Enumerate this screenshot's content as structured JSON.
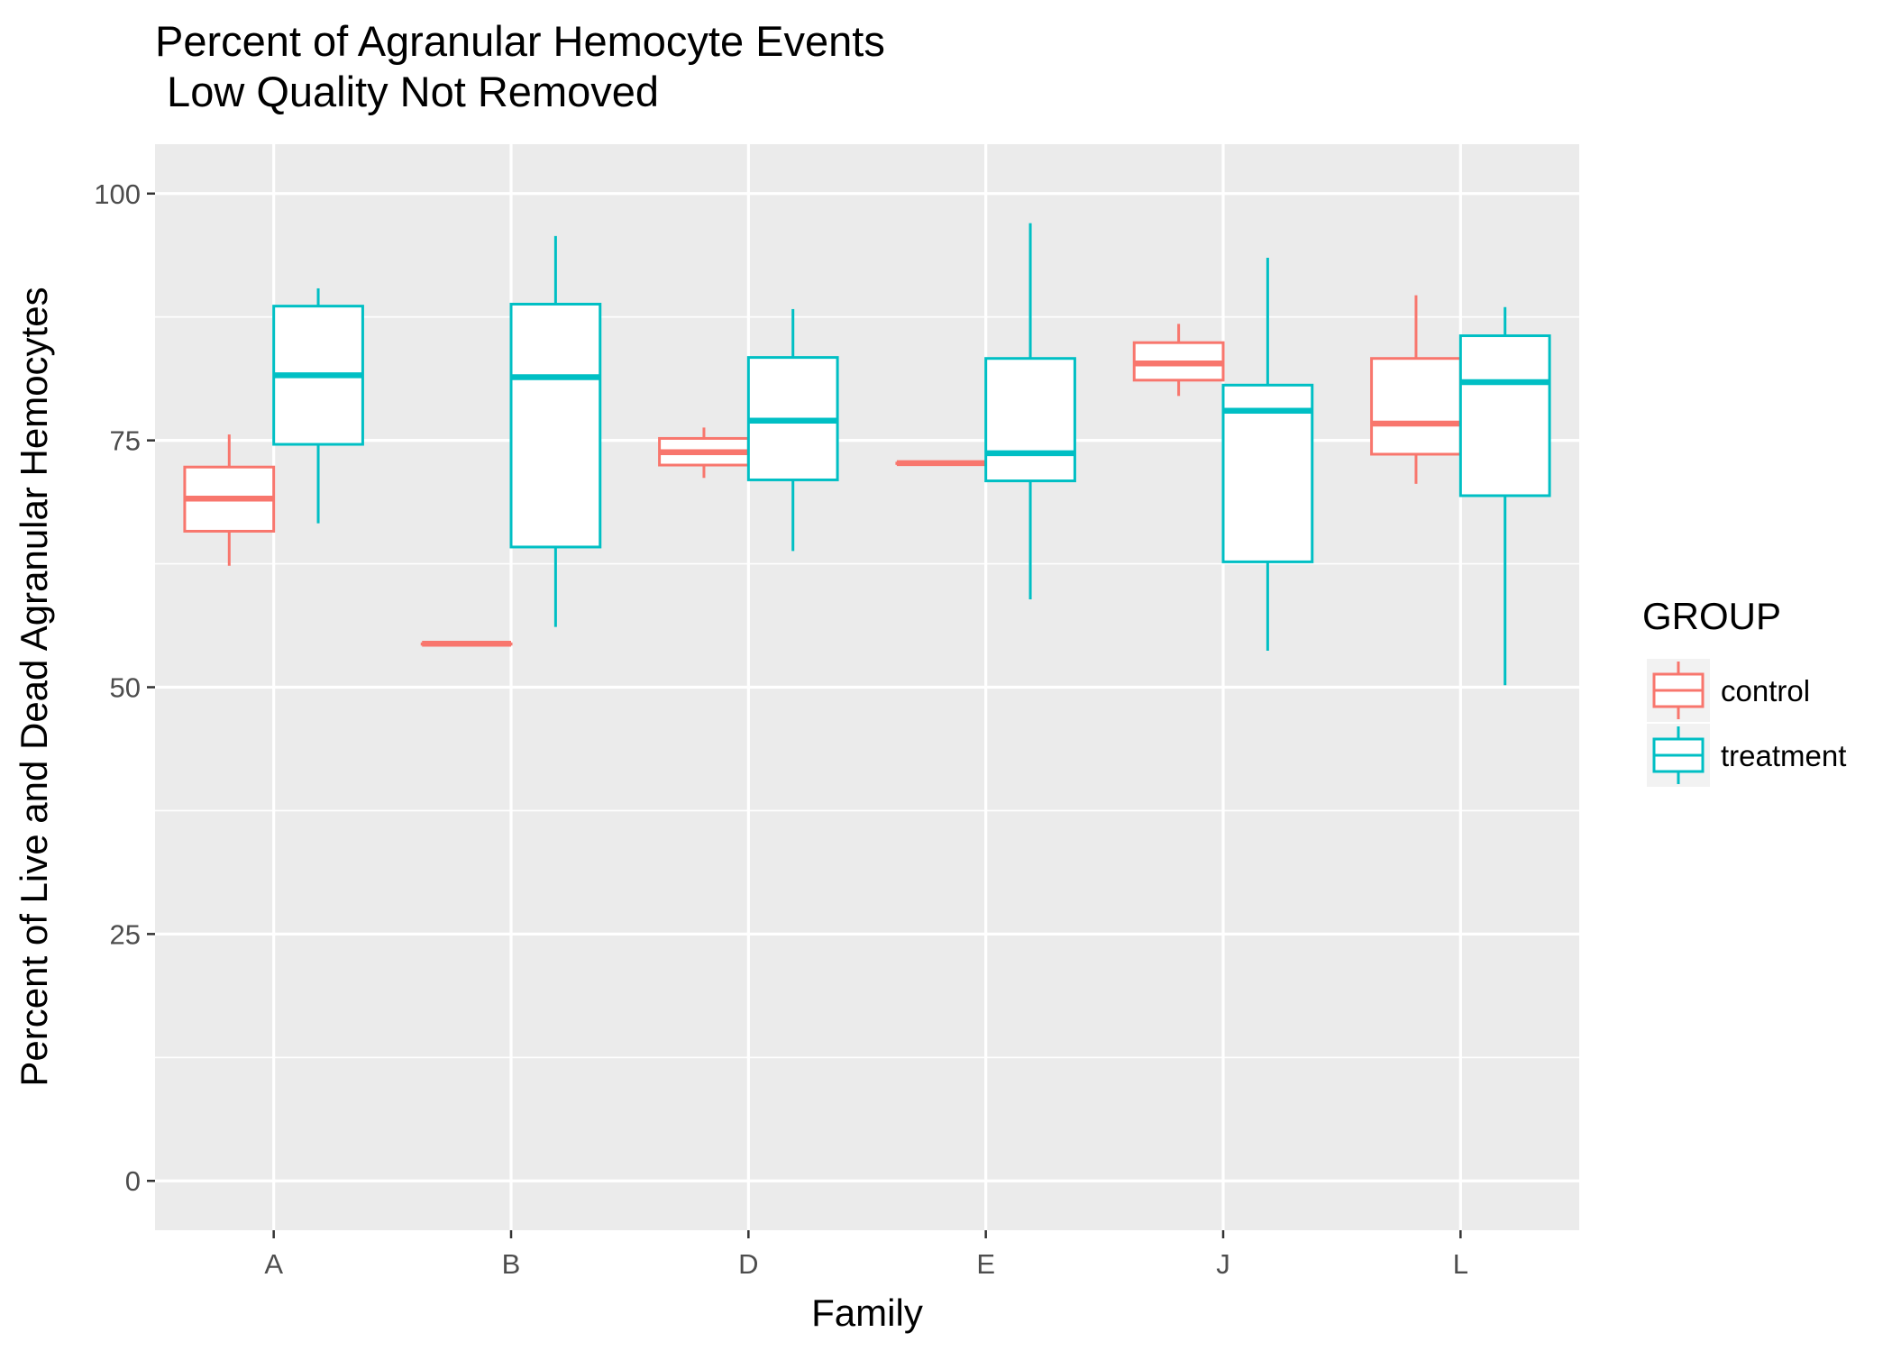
{
  "title": "Percent of Agranular Hemocyte Events",
  "subtitle": " Low Quality Not Removed",
  "chart_data": {
    "type": "boxplot",
    "xlabel": "Family",
    "ylabel": "Percent of Live and Dead Agranular Hemocytes",
    "ylim": [
      -5,
      105
    ],
    "yticks": [
      0,
      25,
      50,
      75,
      100
    ],
    "categories": [
      "A",
      "B",
      "D",
      "E",
      "J",
      "L"
    ],
    "grid": true,
    "legend": {
      "title": "GROUP",
      "placement": "right"
    },
    "series": [
      {
        "name": "control",
        "color": "#F8766D",
        "boxes": [
          {
            "category": "A",
            "min": 62.3,
            "q1": 65.8,
            "median": 69.1,
            "q3": 72.3,
            "max": 75.6
          },
          {
            "category": "B",
            "min": 54.4,
            "q1": 54.4,
            "median": 54.4,
            "q3": 54.4,
            "max": 54.4
          },
          {
            "category": "D",
            "min": 71.2,
            "q1": 72.5,
            "median": 73.8,
            "q3": 75.2,
            "max": 76.3
          },
          {
            "category": "E",
            "min": 72.7,
            "q1": 72.7,
            "median": 72.7,
            "q3": 72.7,
            "max": 72.7
          },
          {
            "category": "J",
            "min": 79.5,
            "q1": 81.1,
            "median": 82.8,
            "q3": 84.9,
            "max": 86.8
          },
          {
            "category": "L",
            "min": 70.6,
            "q1": 73.6,
            "median": 76.7,
            "q3": 83.3,
            "max": 89.7
          }
        ]
      },
      {
        "name": "treatment",
        "color": "#00BFC4",
        "boxes": [
          {
            "category": "A",
            "min": 66.6,
            "q1": 74.6,
            "median": 81.6,
            "q3": 88.6,
            "max": 90.4
          },
          {
            "category": "B",
            "min": 56.1,
            "q1": 64.2,
            "median": 81.4,
            "q3": 88.8,
            "max": 95.7
          },
          {
            "category": "D",
            "min": 63.8,
            "q1": 71.0,
            "median": 77.0,
            "q3": 83.4,
            "max": 88.3
          },
          {
            "category": "E",
            "min": 58.9,
            "q1": 70.9,
            "median": 73.7,
            "q3": 83.3,
            "max": 97.0
          },
          {
            "category": "J",
            "min": 53.7,
            "q1": 62.7,
            "median": 78.0,
            "q3": 80.6,
            "max": 93.5
          },
          {
            "category": "L",
            "min": 50.2,
            "q1": 69.4,
            "median": 80.9,
            "q3": 85.6,
            "max": 88.5
          }
        ]
      }
    ]
  }
}
